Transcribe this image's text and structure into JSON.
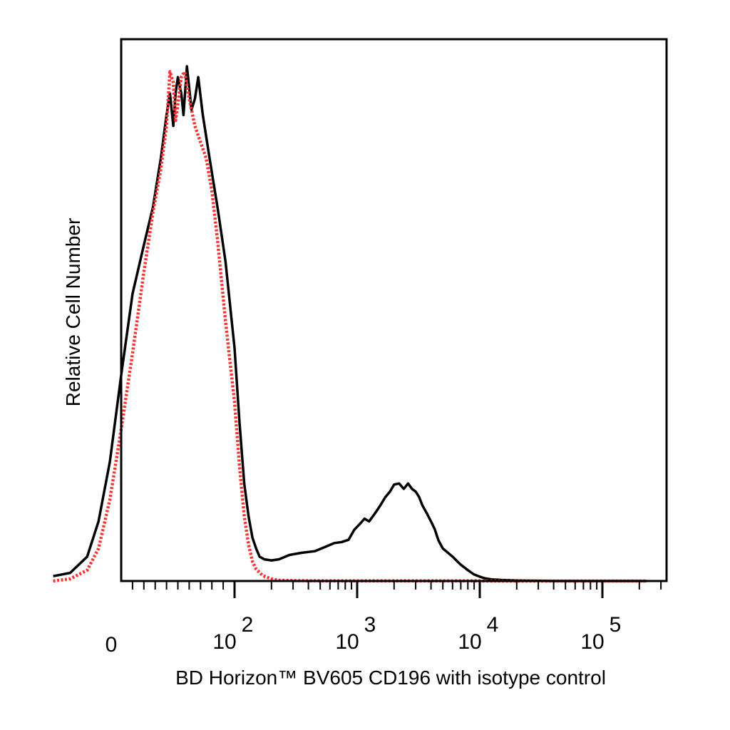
{
  "chart_data": {
    "type": "line",
    "title": "",
    "xlabel": "BD Horizon™ BV605 CD196 with isotype control",
    "ylabel": "Relative Cell Number",
    "x_scale": "biexponential",
    "xlim": [
      -60,
      230000
    ],
    "ylim": [
      0,
      1.0
    ],
    "grid": false,
    "legend": "none",
    "x_tick_labels": [
      {
        "value": 0,
        "base": "0",
        "exp": ""
      },
      {
        "value": 100,
        "base": "10",
        "exp": "2"
      },
      {
        "value": 1000,
        "base": "10",
        "exp": "3"
      },
      {
        "value": 10000,
        "base": "10",
        "exp": "4"
      },
      {
        "value": 100000,
        "base": "10",
        "exp": "5"
      }
    ],
    "series": [
      {
        "color": "#000000",
        "dash": "solid",
        "x": [
          -60,
          -45,
          -30,
          -20,
          -10,
          0,
          10,
          20,
          28,
          35,
          40,
          43,
          46,
          48,
          50,
          53,
          55,
          58,
          62,
          65,
          68,
          72,
          78,
          85,
          92,
          100,
          110,
          120,
          130,
          140,
          150,
          160,
          175,
          200,
          230,
          280,
          350,
          450,
          550,
          650,
          750,
          850,
          950,
          1050,
          1150,
          1250,
          1400,
          1550,
          1700,
          1850,
          2000,
          2200,
          2400,
          2600,
          2800,
          3000,
          3200,
          3400,
          3700,
          4000,
          4300,
          4600,
          5000,
          6000,
          7000,
          8000,
          9000,
          10000,
          11000,
          12500,
          15000,
          20000,
          40000,
          100000,
          230000
        ],
        "y": [
          0.009,
          0.015,
          0.045,
          0.11,
          0.22,
          0.38,
          0.53,
          0.62,
          0.69,
          0.78,
          0.86,
          0.9,
          0.84,
          0.9,
          0.93,
          0.9,
          0.86,
          0.95,
          0.87,
          0.89,
          0.93,
          0.86,
          0.78,
          0.69,
          0.59,
          0.43,
          0.29,
          0.18,
          0.12,
          0.08,
          0.06,
          0.045,
          0.04,
          0.038,
          0.04,
          0.048,
          0.052,
          0.055,
          0.063,
          0.07,
          0.072,
          0.076,
          0.095,
          0.105,
          0.115,
          0.11,
          0.125,
          0.14,
          0.155,
          0.165,
          0.178,
          0.18,
          0.17,
          0.18,
          0.17,
          0.165,
          0.155,
          0.14,
          0.125,
          0.11,
          0.095,
          0.075,
          0.06,
          0.045,
          0.03,
          0.02,
          0.012,
          0.008,
          0.005,
          0.003,
          0.002,
          0.001,
          0.0,
          0.0,
          0.0
        ]
      },
      {
        "color": "#ff3333",
        "dash": "dotted",
        "x": [
          -60,
          -45,
          -30,
          -20,
          -10,
          0,
          10,
          20,
          28,
          35,
          40,
          43,
          46,
          48,
          50,
          53,
          56,
          60,
          65,
          70,
          75,
          80,
          85,
          92,
          100,
          110,
          120,
          130,
          140,
          150,
          170,
          200,
          230,
          300,
          400,
          600,
          1000,
          2000,
          5000,
          10000,
          12000,
          20000,
          100000,
          230000
        ],
        "y": [
          0.0,
          0.004,
          0.02,
          0.06,
          0.15,
          0.28,
          0.42,
          0.57,
          0.68,
          0.76,
          0.84,
          0.94,
          0.92,
          0.85,
          0.88,
          0.93,
          0.94,
          0.89,
          0.84,
          0.81,
          0.78,
          0.72,
          0.63,
          0.48,
          0.33,
          0.21,
          0.12,
          0.068,
          0.036,
          0.022,
          0.01,
          0.004,
          0.0015,
          0.0008,
          0.0005,
          0.0003,
          0.0003,
          0.0002,
          0.0002,
          0.0002,
          0.0001,
          0.0,
          0.0,
          0.0
        ]
      }
    ]
  }
}
